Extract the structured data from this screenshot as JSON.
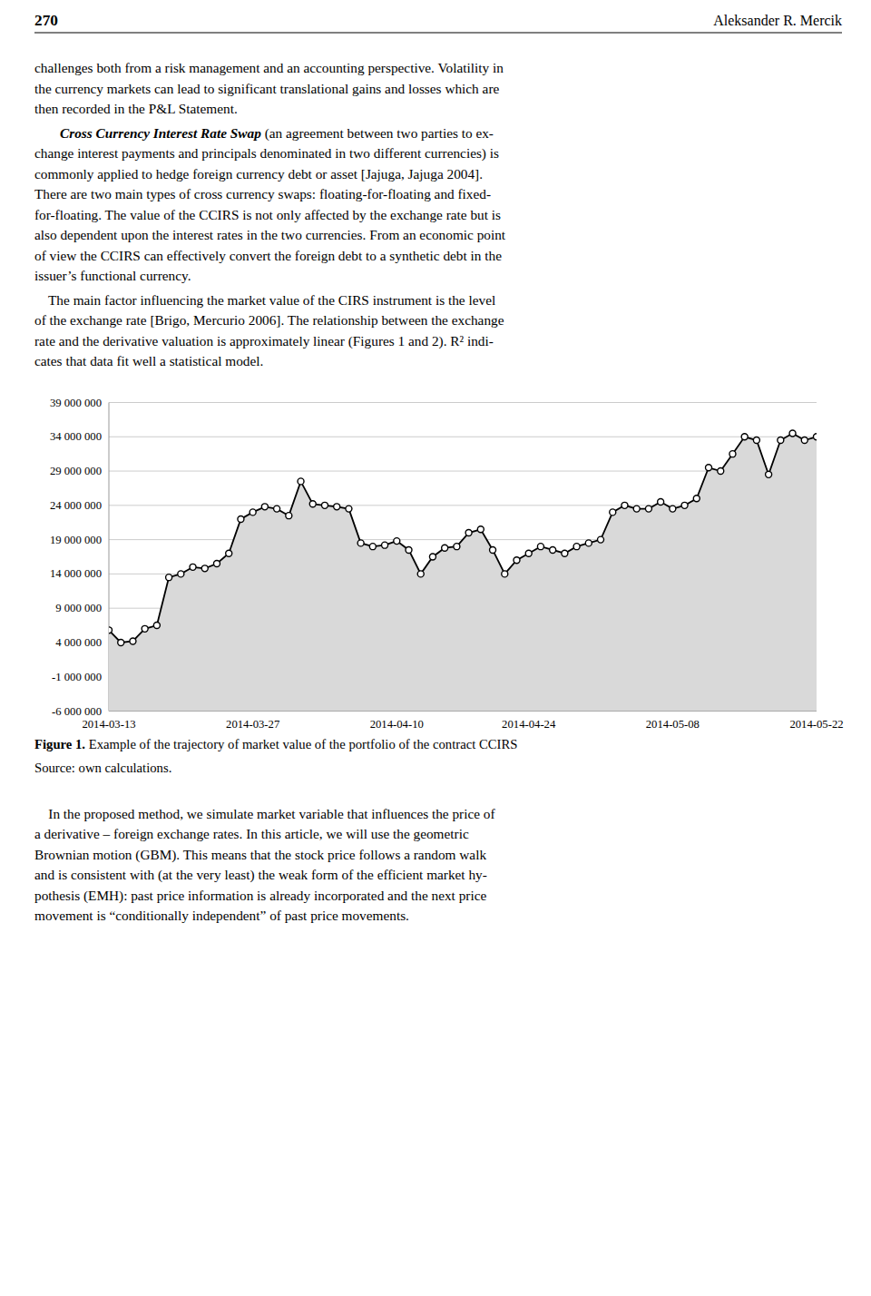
{
  "page": {
    "page_title_left": "270",
    "page_title_right": "Aleksander R. Mercik",
    "para1_lines": [
      "challenges both from a risk management and an accounting perspective. Volatility in",
      "the currency markets can lead to significant translational gains and losses which are",
      "then recorded in the P&L Statement."
    ],
    "para2_bold": "Cross Currency Interest Rate Swap",
    "para2_lines": [
      " (an agreement between two parties to ex-",
      "change interest payments and principals denominated in two different currencies) is",
      "commonly applied to hedge foreign currency debt or asset [Jajuga, Jajuga 2004].",
      "There are two main types of cross currency swaps: floating-for-floating and fixed-",
      "for-floating. The value of the CCIRS is not only affected by the exchange rate but is",
      "also dependent upon the interest rates in the two currencies. From an economic point",
      "of view the CCIRS can effectively convert the foreign debt to a synthetic debt in the",
      "issuer’s functional currency."
    ],
    "para3_lines": [
      "    The main factor influencing the market value of the CIRS instrument is the level",
      "of the exchange rate [Brigo, Mercurio 2006]. The relationship between the exchange",
      "rate and the derivative valuation is approximately linear (Figures 1 and 2). R² indi-",
      "cates that data fit well a statistical model."
    ],
    "figure_caption_bold": "Figure 1.",
    "figure_caption_rest": " Example of the trajectory of market value of the portfolio of the contract CCIRS",
    "figure_source": "Source: own calculations.",
    "para4_lines": [
      "    In the proposed method, we simulate market variable that influences the price of",
      "a derivative – foreign exchange rates. In this article, we will use the geometric",
      "Brownian motion (GBM). This means that the stock price follows a random walk",
      "and is consistent with (at the very least) the weak form of the efficient market hy-",
      "pothesis (EMH): past price information is already incorporated and the next price",
      "movement is “conditionally independent” of past price movements."
    ]
  },
  "chart_data": {
    "type": "area",
    "color": "#d9d9d9",
    "categories": [
      "2014-03-13",
      null,
      null,
      null,
      null,
      null,
      null,
      null,
      null,
      null,
      null,
      null,
      "2014-03-27",
      null,
      null,
      null,
      null,
      null,
      null,
      null,
      null,
      null,
      null,
      null,
      "2014-04-10",
      null,
      null,
      null,
      null,
      null,
      null,
      null,
      null,
      null,
      null,
      "2014-04-24",
      null,
      null,
      null,
      null,
      null,
      null,
      null,
      null,
      null,
      null,
      null,
      "2014-05-08",
      null,
      null,
      null,
      null,
      null,
      null,
      null,
      null,
      null,
      null,
      null,
      "2014-05-22"
    ],
    "series": [
      {
        "color": "#000000",
        "marker": "circle",
        "values": [
          5800000,
          4000000,
          4200000,
          6000000,
          6500000,
          13500000,
          14000000,
          15000000,
          14800000,
          15500000,
          17000000,
          22000000,
          23000000,
          23800000,
          23500000,
          22500000,
          27500000,
          24200000,
          24000000,
          23800000,
          23500000,
          18500000,
          18000000,
          18200000,
          18800000,
          17500000,
          14000000,
          16500000,
          17800000,
          18000000,
          20000000,
          20500000,
          17500000,
          14000000,
          16000000,
          17000000,
          18000000,
          17500000,
          17000000,
          18000000,
          18500000,
          19000000,
          23000000,
          24000000,
          23500000,
          23500000,
          24500000,
          23500000,
          24000000,
          25000000,
          29500000,
          29000000,
          31500000,
          34000000,
          33500000,
          28500000,
          33500000,
          34500000,
          33500000,
          34000000
        ]
      }
    ],
    "ylim": [
      -6000000,
      39000000
    ],
    "yticks": [
      {
        "value": -6000000,
        "label": "-6 000 000"
      },
      {
        "value": -1000000,
        "label": "-1 000 000"
      },
      {
        "value": 4000000,
        "label": "4 000 000"
      },
      {
        "value": 9000000,
        "label": "9 000 000"
      },
      {
        "value": 14000000,
        "label": "14 000 000"
      },
      {
        "value": 19000000,
        "label": "19 000 000"
      },
      {
        "value": 24000000,
        "label": "24 000 000"
      },
      {
        "value": 29000000,
        "label": "29 000 000"
      },
      {
        "value": 34000000,
        "label": "34 000 000"
      },
      {
        "value": 39000000,
        "label": "39 000 000"
      }
    ],
    "grid": true
  }
}
